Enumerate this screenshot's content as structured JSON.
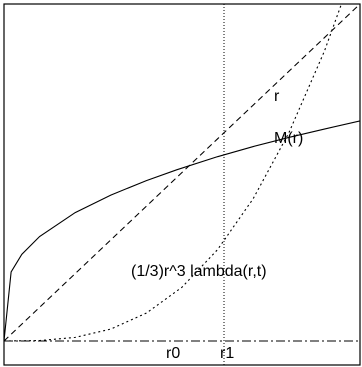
{
  "chart_data": {
    "type": "line",
    "title": "",
    "xlabel": "",
    "ylabel": "",
    "xlim": [
      0,
      1
    ],
    "ylim": [
      0,
      1
    ],
    "grid": false,
    "legend": "none",
    "vertical_markers": [
      {
        "name": "r0",
        "x": 0.485,
        "style": "none"
      },
      {
        "name": "r1",
        "x": 0.618,
        "style": "dotted"
      }
    ],
    "series": [
      {
        "name": "r",
        "style": "dashed",
        "x": [
          0,
          0.1,
          0.2,
          0.3,
          0.4,
          0.5,
          0.6,
          0.7,
          0.8,
          0.9,
          1.0
        ],
        "y": [
          0,
          0.1,
          0.2,
          0.3,
          0.4,
          0.5,
          0.6,
          0.7,
          0.8,
          0.9,
          1.0
        ]
      },
      {
        "name": "M(r)",
        "style": "solid",
        "x": [
          0,
          0.02,
          0.05,
          0.1,
          0.2,
          0.3,
          0.4,
          0.485,
          0.6,
          0.7,
          0.8,
          0.9,
          1.0
        ],
        "y": [
          0,
          0.205,
          0.257,
          0.31,
          0.381,
          0.433,
          0.476,
          0.508,
          0.547,
          0.577,
          0.604,
          0.629,
          0.653
        ]
      },
      {
        "name": "(1/3)r^3 lambda(r,t)",
        "style": "dotted",
        "x": [
          0,
          0.1,
          0.2,
          0.3,
          0.4,
          0.5,
          0.6,
          0.7,
          0.8,
          0.9,
          1.0
        ],
        "y": [
          0,
          0.0013,
          0.0107,
          0.0354,
          0.0829,
          0.1596,
          0.2713,
          0.4224,
          0.6174,
          0.86,
          1.1522
        ]
      }
    ],
    "labels": {
      "r": "r",
      "M": "M(r)",
      "lambda": "(1/3)r^3 lambda(r,t)",
      "r0": "r0",
      "r1": "r1"
    }
  }
}
